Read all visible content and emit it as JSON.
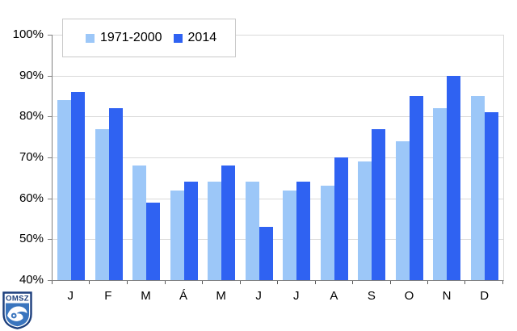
{
  "chart_data": {
    "type": "bar",
    "title": "",
    "categories": [
      "J",
      "F",
      "M",
      "Á",
      "M",
      "J",
      "J",
      "A",
      "S",
      "O",
      "N",
      "D"
    ],
    "series": [
      {
        "name": "1971-2000",
        "color": "#9cc7f8",
        "values": [
          84,
          77,
          68,
          62,
          64,
          64,
          62,
          63,
          69,
          74,
          82,
          85
        ]
      },
      {
        "name": "2014",
        "color": "#2f62f2",
        "values": [
          86,
          82,
          59,
          64,
          68,
          53,
          64,
          70,
          77,
          85,
          90,
          81
        ]
      }
    ],
    "y_ticks": [
      "100%",
      "90%",
      "80%",
      "70%",
      "60%",
      "50%",
      "40%"
    ],
    "ylim": [
      40,
      100
    ],
    "xlabel": "",
    "ylabel": "",
    "grid": "horizontal",
    "legend_position": "top-left",
    "colors": {
      "gridline": "#d9d9d9",
      "axis": "#7f7f7f",
      "plot_right_border": "#d9d9d9",
      "legend_border": "#c9c9c9",
      "text": "#000000"
    }
  },
  "logo": {
    "text": "OMSZ",
    "border_color": "#1c3f7d",
    "field_color": "#3a75be"
  }
}
